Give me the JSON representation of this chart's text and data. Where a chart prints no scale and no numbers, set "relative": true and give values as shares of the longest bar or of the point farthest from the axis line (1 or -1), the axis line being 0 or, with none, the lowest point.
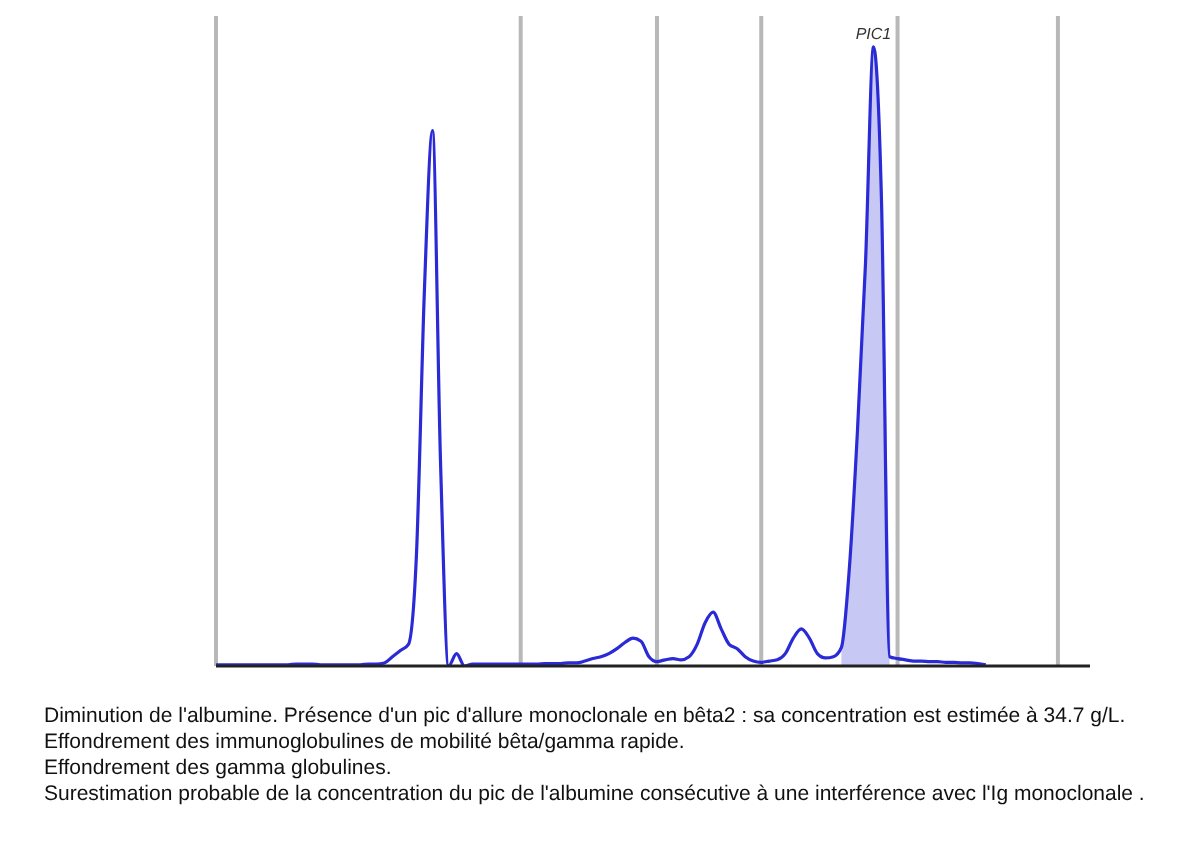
{
  "chart_data": {
    "type": "line",
    "relative": true,
    "tick_labels": false,
    "categories": [
      null,
      null,
      null,
      null,
      null,
      null,
      null,
      null,
      null,
      null,
      null,
      null,
      null,
      null,
      null,
      null,
      null,
      null,
      null,
      null,
      null,
      null,
      null,
      null,
      null,
      null,
      null,
      null,
      null,
      null,
      null,
      null,
      null,
      null,
      null,
      null,
      null,
      null,
      null,
      null,
      null,
      null,
      null,
      null,
      null,
      null,
      null,
      null,
      null,
      null,
      null,
      null,
      null,
      null,
      null,
      null,
      null,
      null,
      null,
      null,
      null,
      null,
      null,
      null,
      null,
      null,
      null,
      null,
      null,
      null,
      null,
      null,
      null,
      null,
      null,
      null,
      null,
      null,
      null,
      null,
      null,
      null,
      null,
      null,
      null,
      null,
      null,
      null,
      null,
      null,
      null,
      null,
      null,
      null,
      null,
      null,
      null,
      null,
      null,
      null,
      null,
      null,
      null,
      null,
      null,
      null,
      null,
      null,
      null,
      null
    ],
    "series": [
      {
        "color": "#2a2ad6",
        "values": [
          0.002,
          0.002,
          0.002,
          0.002,
          0.002,
          0.002,
          0.002,
          0.002,
          0.002,
          0.002,
          0.003,
          0.003,
          0.003,
          0.002,
          0.002,
          0.002,
          0.002,
          0.002,
          0.002,
          0.003,
          0.003,
          0.005,
          0.015,
          0.025,
          0.035,
          0.18,
          0.61,
          0.865,
          0.33,
          0,
          0.02,
          0,
          0.003,
          0.003,
          0.003,
          0.003,
          0.003,
          0.003,
          0.003,
          0.003,
          0.003,
          0.004,
          0.004,
          0.004,
          0.005,
          0.005,
          0.008,
          0.012,
          0.015,
          0.02,
          0.028,
          0.038,
          0.045,
          0.04,
          0.015,
          0.007,
          0.01,
          0.012,
          0.01,
          0.015,
          0.035,
          0.07,
          0.087,
          0.06,
          0.035,
          0.028,
          0.015,
          0.008,
          0.006,
          0.008,
          0.01,
          0.02,
          0.045,
          0.06,
          0.045,
          0.02,
          0.013,
          0.015,
          0.03,
          0.16,
          0.38,
          0.65,
          1,
          0.75,
          0.015,
          0.012,
          0.01,
          0.008,
          0.008,
          0.007,
          0.007,
          0.006,
          0.006,
          0.005,
          0.005,
          0.004,
          0.002,
          null,
          null,
          null,
          null,
          null,
          null,
          null,
          null,
          null,
          null,
          null,
          null,
          null
        ]
      },
      {
        "type": "area",
        "color": "#c8c8f4",
        "values": [
          null,
          null,
          null,
          null,
          null,
          null,
          null,
          null,
          null,
          null,
          null,
          null,
          null,
          null,
          null,
          null,
          null,
          null,
          null,
          null,
          null,
          null,
          null,
          null,
          null,
          null,
          null,
          null,
          null,
          null,
          null,
          null,
          null,
          null,
          null,
          null,
          null,
          null,
          null,
          null,
          null,
          null,
          null,
          null,
          null,
          null,
          null,
          null,
          null,
          null,
          null,
          null,
          null,
          null,
          null,
          null,
          null,
          null,
          null,
          null,
          null,
          null,
          null,
          null,
          null,
          null,
          null,
          null,
          null,
          null,
          null,
          null,
          null,
          null,
          null,
          null,
          null,
          null,
          0.03,
          0.16,
          0.38,
          0.65,
          1,
          0.75,
          0.015,
          null,
          null,
          null,
          null,
          null,
          null,
          null,
          null,
          null,
          null,
          null,
          null,
          null,
          null,
          null,
          null,
          null,
          null,
          null,
          null,
          null,
          null,
          null,
          null,
          null
        ]
      }
    ],
    "grid": "x",
    "annotations": [
      {
        "text": "PIC1",
        "y": 1
      },
      "Diminution de l'albumine. Présence d'un pic d'allure monoclonale en bêta2 : sa concentration est estimée à 34.7 g/L.",
      "Effondrement des immunoglobulines de mobilité bêta/gamma rapide.",
      "Effondrement des gamma globulines.",
      "Surestimation probable de la concentration du pic de l'albumine consécutive à une interférence avec l'Ig monoclonale ."
    ]
  }
}
